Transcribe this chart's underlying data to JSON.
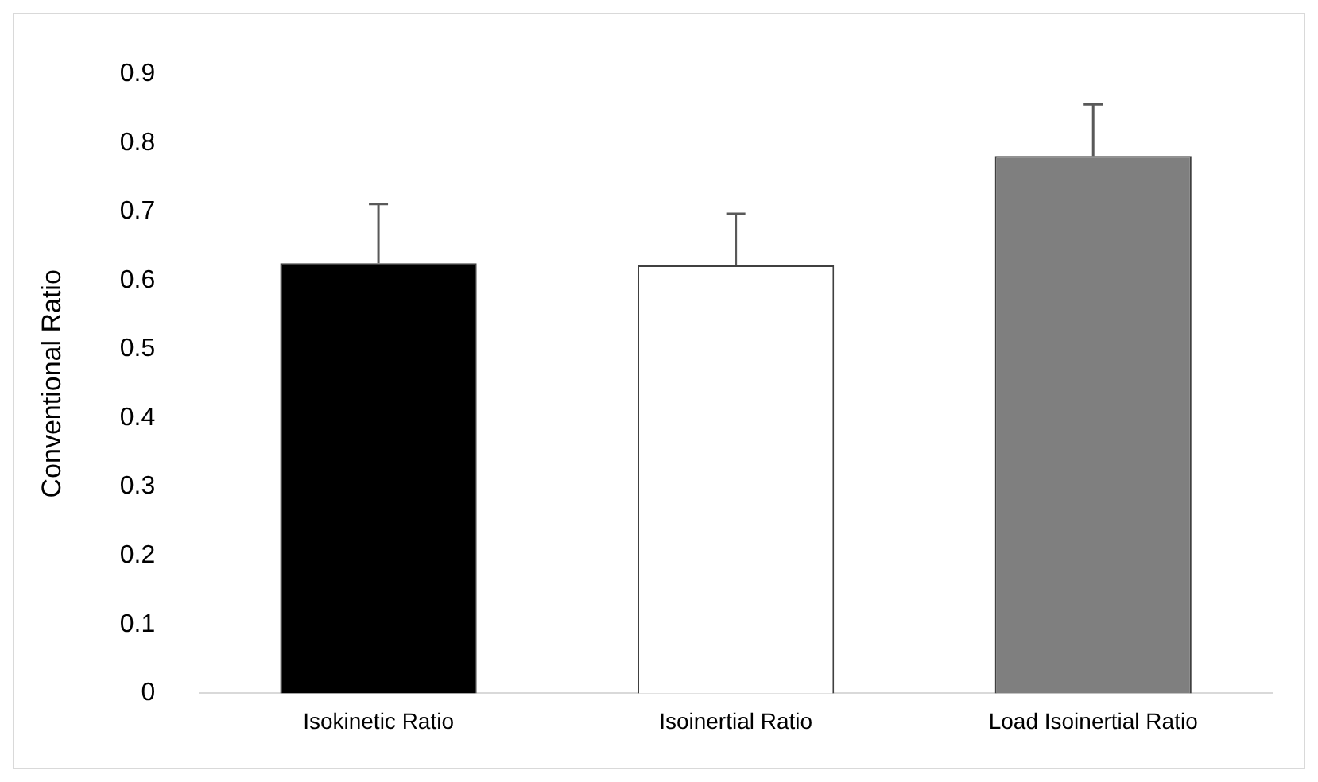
{
  "chart_data": {
    "type": "bar",
    "ylabel": "Conventional Ratio",
    "categories": [
      "Isokinetic Ratio",
      "Isoinertial Ratio",
      "Load Isoinertial Ratio"
    ],
    "values": [
      0.625,
      0.622,
      0.781
    ],
    "errors": [
      [
        0.625,
        0.711
      ],
      [
        0.622,
        0.697
      ],
      [
        0.781,
        0.856
      ]
    ],
    "colors": [
      "#000000",
      "#ffffff",
      "#7f7f7f"
    ],
    "ylim": [
      0,
      0.9
    ],
    "yticks": [
      0,
      0.1,
      0.2,
      0.3,
      0.4,
      0.5,
      0.6,
      0.7,
      0.8,
      0.9
    ],
    "grid": false,
    "legend": false
  }
}
